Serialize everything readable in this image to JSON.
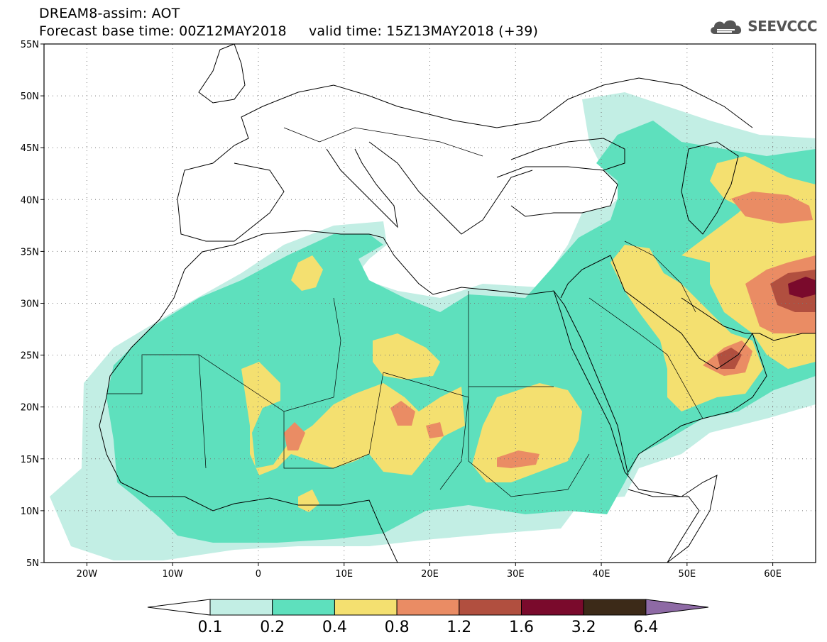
{
  "title": {
    "product": "DREAM8-assim: AOT",
    "line2": "Forecast base time: 00Z12MAY2018     valid time: 15Z13MAY2018 (+39)"
  },
  "logo": {
    "icon": "cloud-icon",
    "text": "SEEVCCC"
  },
  "axes": {
    "lat_labels": [
      "55N",
      "50N",
      "45N",
      "40N",
      "35N",
      "30N",
      "25N",
      "20N",
      "15N",
      "10N",
      "5N"
    ],
    "lon_labels": [
      "20W",
      "10W",
      "0",
      "10E",
      "20E",
      "30E",
      "40E",
      "50E",
      "60E"
    ],
    "lat_range": [
      5,
      55
    ],
    "lon_range": [
      -25,
      65
    ],
    "grid": "dotted"
  },
  "colorbar": {
    "labels": [
      "0.1",
      "0.2",
      "0.4",
      "0.8",
      "1.2",
      "1.6",
      "3.2",
      "6.4"
    ],
    "colors": [
      "#ffffff",
      "#c2eee4",
      "#5ee0bd",
      "#f4e070",
      "#ea8c64",
      "#b14f3f",
      "#7a0a2c",
      "#3c2a18",
      "#8e6aa5"
    ]
  }
}
